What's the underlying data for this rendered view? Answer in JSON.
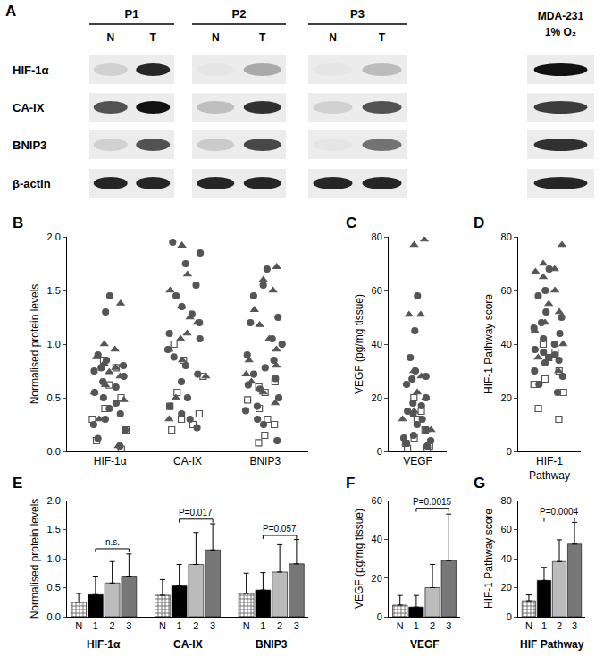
{
  "blot": {
    "panel": "A",
    "lane_groups": [
      {
        "label": "P1",
        "lanes": [
          "N",
          "T"
        ]
      },
      {
        "label": "P2",
        "lanes": [
          "N",
          "T"
        ]
      },
      {
        "label": "P3",
        "lanes": [
          "N",
          "T"
        ]
      },
      {
        "label": "MDA-231",
        "sublabel": "1% O₂"
      }
    ],
    "rows": [
      {
        "label": "HIF-1α",
        "intensity": [
          0.12,
          0.9,
          0.03,
          0.3,
          0.03,
          0.22,
          1.0
        ]
      },
      {
        "label": "CA-IX",
        "intensity": [
          0.7,
          1.0,
          0.2,
          0.85,
          0.12,
          0.7,
          0.8
        ]
      },
      {
        "label": "BNIP3",
        "intensity": [
          0.12,
          0.7,
          0.15,
          0.75,
          0.03,
          0.55,
          0.85
        ]
      },
      {
        "label": "β-actin",
        "intensity": [
          0.9,
          0.9,
          0.9,
          0.9,
          0.9,
          0.9,
          0.9
        ]
      }
    ]
  },
  "chart_data": [
    {
      "panel": "B",
      "type": "scatter",
      "categories": [
        "HIF-1α",
        "CA-IX",
        "BNIP3"
      ],
      "y_label": "Normalised protein levels",
      "ylim": [
        0,
        2
      ],
      "yticks": [
        {
          "value": 0,
          "label": "0.0"
        },
        {
          "value": 0.5,
          "label": "0.5"
        },
        {
          "value": 1,
          "label": "1.0"
        },
        {
          "value": 1.5,
          "label": "1.5"
        },
        {
          "value": 2,
          "label": "2.0"
        }
      ],
      "series": [
        {
          "marker": "triangle-up",
          "color": "#555555",
          "values": [
            [
              1.38,
              1.0,
              0.95,
              0.88,
              0.82,
              0.78,
              0.74,
              0.7,
              0.62,
              0.55,
              0.48,
              0.3,
              0.05
            ],
            [
              1.92,
              1.65,
              1.5,
              1.35,
              1.25,
              1.2,
              1.1,
              1.05,
              0.95,
              0.85,
              0.7,
              0.5,
              0.3
            ],
            [
              1.72,
              1.6,
              1.5,
              1.32,
              1.18,
              1.05,
              0.95,
              0.85,
              0.8,
              0.72,
              0.65,
              0.55,
              0.45
            ]
          ]
        },
        {
          "marker": "circle",
          "color": "#555555",
          "values": [
            [
              1.45,
              1.3,
              0.9,
              0.85,
              0.8,
              0.78,
              0.75,
              0.7,
              0.65,
              0.6,
              0.55,
              0.5,
              0.45,
              0.4,
              0.35,
              0.3,
              0.25,
              0.2,
              0.12,
              0.05
            ],
            [
              1.95,
              1.85,
              1.75,
              1.55,
              1.45,
              1.35,
              1.28,
              1.2,
              1.1,
              1.05,
              0.95,
              0.88,
              0.8,
              0.72,
              0.65,
              0.5,
              0.42,
              0.35,
              0.3,
              0.22
            ],
            [
              1.7,
              1.55,
              1.45,
              1.25,
              1.2,
              1.05,
              1.0,
              0.9,
              0.85,
              0.78,
              0.72,
              0.68,
              0.62,
              0.58,
              0.5,
              0.42,
              0.38,
              0.3,
              0.25,
              0.1
            ]
          ]
        },
        {
          "marker": "square-open",
          "color": "#555555",
          "values": [
            [
              0.85,
              0.78,
              0.62,
              0.5,
              0.4,
              0.3,
              0.2,
              0.1,
              0.02
            ],
            [
              1.0,
              0.85,
              0.7,
              0.55,
              0.42,
              0.35,
              0.3,
              0.25,
              0.2
            ],
            [
              0.65,
              0.6,
              0.55,
              0.48,
              0.4,
              0.3,
              0.25,
              0.15,
              0.08
            ]
          ]
        }
      ]
    },
    {
      "panel": "C",
      "type": "scatter",
      "categories": [
        "VEGF"
      ],
      "y_label": "VEGF (pg/mg tissue)",
      "ylim": [
        0,
        80
      ],
      "yticks": [
        0,
        20,
        40,
        60,
        80
      ],
      "series": [
        {
          "marker": "triangle-up",
          "color": "#555555",
          "values": [
            [
              79,
              77,
              51,
              51,
              30,
              28,
              22,
              20,
              15,
              12,
              8,
              3,
              2
            ]
          ]
        },
        {
          "marker": "circle",
          "color": "#555555",
          "values": [
            [
              58,
              45,
              35,
              30,
              28,
              27,
              25,
              20,
              18,
              17,
              15,
              14,
              12,
              10,
              8,
              6,
              5,
              4,
              3,
              2
            ]
          ]
        },
        {
          "marker": "square-open",
          "color": "#555555",
          "values": [
            [
              20,
              15,
              12,
              8,
              5,
              3,
              2,
              1,
              1
            ]
          ]
        }
      ]
    },
    {
      "panel": "D",
      "type": "scatter",
      "categories": [
        "HIF-1 Pathway"
      ],
      "y_label": "HIF-1 Pathway score",
      "ylim": [
        0,
        80
      ],
      "yticks": [
        0,
        20,
        40,
        60,
        80
      ],
      "series": [
        {
          "marker": "triangle-up",
          "color": "#555555",
          "values": [
            [
              77,
              70,
              68,
              67,
              65,
              60,
              55,
              52,
              48,
              45,
              40,
              35,
              30
            ]
          ]
        },
        {
          "marker": "circle",
          "color": "#555555",
          "values": [
            [
              68,
              60,
              58,
              52,
              50,
              48,
              46,
              44,
              42,
              40,
              38,
              37,
              36,
              35,
              34,
              33,
              30,
              28,
              25,
              22
            ]
          ]
        },
        {
          "marker": "square-open",
          "color": "#555555",
          "values": [
            [
              40,
              37,
              35,
              30,
              27,
              25,
              22,
              16,
              12
            ]
          ]
        }
      ]
    },
    {
      "panel": "E",
      "type": "bar",
      "categories": [
        "HIF-1α",
        "CA-IX",
        "BNIP3"
      ],
      "y_label": "Normalised protein levels",
      "ylim": [
        0,
        2
      ],
      "yticks": [
        {
          "value": 0,
          "label": "0.0"
        },
        {
          "value": 0.5,
          "label": "0.5"
        },
        {
          "value": 1,
          "label": "1.0"
        },
        {
          "value": 1.5,
          "label": "1.5"
        },
        {
          "value": 2,
          "label": "2.0"
        }
      ],
      "series": [
        {
          "name": "N",
          "color": "#ffffff",
          "marker": "checkered",
          "values": [
            0.25,
            0.37,
            0.4
          ],
          "errors": [
            0.15,
            0.27,
            0.35
          ]
        },
        {
          "name": "1",
          "color": "#000000",
          "values": [
            0.38,
            0.53,
            0.46
          ],
          "errors": [
            0.32,
            0.37,
            0.3
          ]
        },
        {
          "name": "2",
          "color": "#bbbbbb",
          "values": [
            0.58,
            0.9,
            0.77
          ],
          "errors": [
            0.37,
            0.55,
            0.47
          ]
        },
        {
          "name": "3",
          "color": "#777777",
          "values": [
            0.7,
            1.15,
            0.91
          ],
          "errors": [
            0.38,
            0.45,
            0.42
          ]
        }
      ],
      "comparisons": [
        {
          "category": "HIF-1α",
          "from": "1",
          "to": "3",
          "y": 1.17,
          "label": "n.s."
        },
        {
          "category": "CA-IX",
          "from": "1",
          "to": "3",
          "y": 1.68,
          "label": "P=0.017"
        },
        {
          "category": "BNIP3",
          "from": "1",
          "to": "3",
          "y": 1.4,
          "label": "P=0.057"
        }
      ]
    },
    {
      "panel": "F",
      "type": "bar",
      "categories": [
        "VEGF"
      ],
      "y_label": "VEGF (pg/mg tissue)",
      "ylim": [
        0,
        60
      ],
      "yticks": [
        0,
        20,
        40,
        60
      ],
      "series": [
        {
          "name": "N",
          "color": "#ffffff",
          "marker": "checkered",
          "values": [
            6
          ],
          "errors": [
            5
          ]
        },
        {
          "name": "1",
          "color": "#000000",
          "values": [
            5
          ],
          "errors": [
            6
          ]
        },
        {
          "name": "2",
          "color": "#bbbbbb",
          "values": [
            15
          ],
          "errors": [
            12
          ]
        },
        {
          "name": "3",
          "color": "#777777",
          "values": [
            29
          ],
          "errors": [
            24
          ]
        }
      ],
      "comparisons": [
        {
          "category": "VEGF",
          "from": "1",
          "to": "3",
          "y": 56,
          "label": "P=0.0015"
        }
      ]
    },
    {
      "panel": "G",
      "type": "bar",
      "categories": [
        "HIF Pathway"
      ],
      "y_label": "HIF-1 Pathway score",
      "ylim": [
        0,
        80
      ],
      "yticks": [
        0,
        20,
        40,
        60,
        80
      ],
      "series": [
        {
          "name": "N",
          "color": "#ffffff",
          "marker": "checkered",
          "values": [
            11
          ],
          "errors": [
            4
          ]
        },
        {
          "name": "1",
          "color": "#000000",
          "values": [
            25
          ],
          "errors": [
            9
          ]
        },
        {
          "name": "2",
          "color": "#bbbbbb",
          "values": [
            38
          ],
          "errors": [
            15
          ]
        },
        {
          "name": "3",
          "color": "#777777",
          "values": [
            50
          ],
          "errors": [
            15
          ]
        }
      ],
      "comparisons": [
        {
          "category": "HIF Pathway",
          "from": "1",
          "to": "3",
          "y": 68,
          "label": "P=0.0004"
        }
      ]
    }
  ]
}
